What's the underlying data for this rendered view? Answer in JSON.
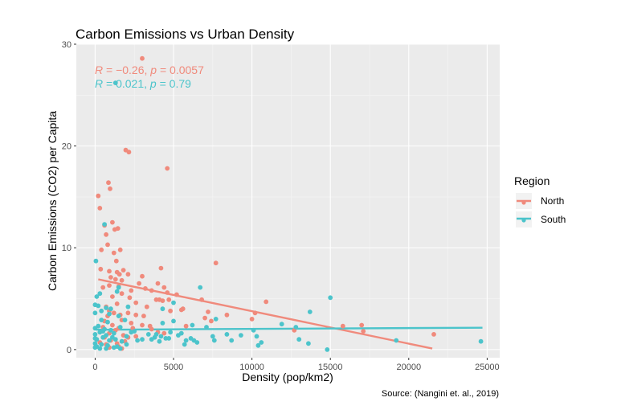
{
  "colors": {
    "north": "#F08A7C",
    "south": "#4CC4CB",
    "panel": "#EBEBEB",
    "grid_major": "#FFFFFF",
    "grid_minor": "#F5F5F5"
  },
  "chart_data": {
    "type": "scatter",
    "title": "Carbon Emissions vs Urban Density",
    "xlabel": "Density (pop/km2)",
    "ylabel": "Carbon Emissions (CO2) per Capita",
    "caption": "Source: (Nangini et. al., 2019)",
    "xlim": [
      -1200,
      25800
    ],
    "ylim": [
      -0.8,
      30
    ],
    "xticks": [
      0,
      5000,
      10000,
      15000,
      20000,
      25000
    ],
    "xtick_labels": [
      "0",
      "5000",
      "10000",
      "15000",
      "20000",
      "25000"
    ],
    "yticks": [
      0,
      10,
      20,
      30
    ],
    "ytick_labels": [
      "0",
      "10",
      "20",
      "30"
    ],
    "grid": true,
    "legend": {
      "title": "Region",
      "position": "right"
    },
    "annotations": {
      "north": {
        "r_label": "R",
        "r_value": " = −0.26, ",
        "p_label": "p",
        "p_value": " = 0.0057"
      },
      "south": {
        "r_label": "R",
        "r_value": " = 0.021, ",
        "p_label": "p",
        "p_value": " = 0.79"
      }
    },
    "series": [
      {
        "name": "North",
        "color": "#F08A7C",
        "trend": {
          "x": [
            200,
            21500
          ],
          "y": [
            6.9,
            0.1
          ]
        },
        "points": [
          [
            3000,
            28.6
          ],
          [
            1950,
            19.6
          ],
          [
            2150,
            19.4
          ],
          [
            4600,
            17.8
          ],
          [
            200,
            15.1
          ],
          [
            850,
            16.4
          ],
          [
            950,
            15.8
          ],
          [
            300,
            13.9
          ],
          [
            600,
            12.2
          ],
          [
            1100,
            12.5
          ],
          [
            1250,
            11.8
          ],
          [
            1450,
            11.9
          ],
          [
            700,
            11.3
          ],
          [
            400,
            9.8
          ],
          [
            800,
            10.3
          ],
          [
            1600,
            9.8
          ],
          [
            1200,
            9.5
          ],
          [
            1350,
            8.7
          ],
          [
            1800,
            7.8
          ],
          [
            7700,
            8.5
          ],
          [
            4200,
            8.0
          ],
          [
            350,
            7.9
          ],
          [
            900,
            7.7
          ],
          [
            1400,
            7.6
          ],
          [
            1550,
            7.4
          ],
          [
            2100,
            7.4
          ],
          [
            3000,
            7.2
          ],
          [
            2800,
            6.5
          ],
          [
            1000,
            7.1
          ],
          [
            1300,
            6.9
          ],
          [
            1700,
            6.8
          ],
          [
            4000,
            6.5
          ],
          [
            4400,
            6.1
          ],
          [
            500,
            6.1
          ],
          [
            900,
            6.3
          ],
          [
            1500,
            6.2
          ],
          [
            2300,
            5.8
          ],
          [
            3200,
            6.0
          ],
          [
            3600,
            5.8
          ],
          [
            4600,
            5.6
          ],
          [
            5200,
            5.4
          ],
          [
            1700,
            5.5
          ],
          [
            2200,
            5.1
          ],
          [
            1100,
            5.2
          ],
          [
            3900,
            4.9
          ],
          [
            4300,
            4.8
          ],
          [
            4700,
            4.9
          ],
          [
            10900,
            4.7
          ],
          [
            6800,
            4.9
          ],
          [
            2600,
            4.6
          ],
          [
            3300,
            4.2
          ],
          [
            5600,
            4.0
          ],
          [
            5500,
            3.9
          ],
          [
            7200,
            3.7
          ],
          [
            700,
            4.2
          ],
          [
            1400,
            4.5
          ],
          [
            900,
            3.8
          ],
          [
            2100,
            3.6
          ],
          [
            1600,
            3.4
          ],
          [
            800,
            3.3
          ],
          [
            1200,
            3.6
          ],
          [
            2600,
            3.4
          ],
          [
            3100,
            3.3
          ],
          [
            7400,
            2.8
          ],
          [
            8400,
            3.4
          ],
          [
            7000,
            3.1
          ],
          [
            10000,
            3.0
          ],
          [
            600,
            2.8
          ],
          [
            1700,
            2.9
          ],
          [
            2300,
            2.6
          ],
          [
            3000,
            2.4
          ],
          [
            3500,
            2.3
          ],
          [
            500,
            2.2
          ],
          [
            1100,
            2.4
          ],
          [
            1500,
            2.1
          ],
          [
            2400,
            2.1
          ],
          [
            3600,
            2.0
          ],
          [
            4000,
            1.7
          ],
          [
            4400,
            1.6
          ],
          [
            5800,
            2.3
          ],
          [
            12700,
            1.9
          ],
          [
            15800,
            2.3
          ],
          [
            17000,
            2.4
          ],
          [
            17100,
            1.8
          ],
          [
            21600,
            1.5
          ],
          [
            900,
            1.6
          ],
          [
            1300,
            1.9
          ],
          [
            1800,
            1.4
          ],
          [
            2100,
            1.2
          ],
          [
            2600,
            1.3
          ],
          [
            600,
            1.2
          ],
          [
            1000,
            0.9
          ],
          [
            1400,
            0.6
          ],
          [
            1900,
            0.8
          ],
          [
            300,
            0.7
          ],
          [
            700,
            0.5
          ],
          [
            900,
            0.2
          ],
          [
            1500,
            0.3
          ],
          [
            1700,
            0.1
          ],
          [
            10200,
            3.6
          ],
          [
            4800,
            3.8
          ],
          [
            4100,
            4.9
          ]
        ]
      },
      {
        "name": "South",
        "color": "#4CC4CB",
        "trend": {
          "x": [
            50,
            24700
          ],
          "y": [
            1.95,
            2.15
          ]
        },
        "points": [
          [
            1300,
            26.2
          ],
          [
            600,
            12.3
          ],
          [
            50,
            8.7
          ],
          [
            1500,
            6.1
          ],
          [
            6700,
            6.1
          ],
          [
            100,
            5.2
          ],
          [
            300,
            5.5
          ],
          [
            1400,
            5.7
          ],
          [
            15000,
            5.1
          ],
          [
            5000,
            4.6
          ],
          [
            0,
            4.4
          ],
          [
            200,
            4.3
          ],
          [
            700,
            4.1
          ],
          [
            1000,
            4.0
          ],
          [
            2100,
            4.2
          ],
          [
            4300,
            4.0
          ],
          [
            13700,
            3.7
          ],
          [
            0,
            3.6
          ],
          [
            400,
            3.8
          ],
          [
            900,
            3.5
          ],
          [
            1500,
            3.3
          ],
          [
            7700,
            3.0
          ],
          [
            400,
            2.9
          ],
          [
            800,
            2.7
          ],
          [
            1900,
            2.9
          ],
          [
            4300,
            2.6
          ],
          [
            5000,
            2.8
          ],
          [
            6200,
            2.4
          ],
          [
            7100,
            2.2
          ],
          [
            11900,
            2.5
          ],
          [
            12800,
            2.2
          ],
          [
            0,
            2.1
          ],
          [
            200,
            2.3
          ],
          [
            600,
            2.0
          ],
          [
            1000,
            1.9
          ],
          [
            1600,
            2.2
          ],
          [
            2300,
            1.7
          ],
          [
            3900,
            1.5
          ],
          [
            4800,
            1.7
          ],
          [
            5500,
            1.6
          ],
          [
            8400,
            1.5
          ],
          [
            0,
            1.5
          ],
          [
            300,
            1.7
          ],
          [
            700,
            1.4
          ],
          [
            1200,
            1.6
          ],
          [
            2000,
            1.3
          ],
          [
            3400,
            1.5
          ],
          [
            3800,
            1.2
          ],
          [
            4200,
            1.3
          ],
          [
            4700,
            1.1
          ],
          [
            5300,
            1.4
          ],
          [
            6100,
            1.1
          ],
          [
            7500,
            1.3
          ],
          [
            10300,
            1.3
          ],
          [
            13000,
            1.0
          ],
          [
            100,
            1.0
          ],
          [
            500,
            1.2
          ],
          [
            900,
            0.9
          ],
          [
            1300,
            1.0
          ],
          [
            1700,
            0.8
          ],
          [
            2700,
            0.9
          ],
          [
            3600,
            1.0
          ],
          [
            4500,
            1.1
          ],
          [
            5800,
            0.9
          ],
          [
            6500,
            0.7
          ],
          [
            7600,
            0.9
          ],
          [
            8700,
            0.9
          ],
          [
            10600,
            0.7
          ],
          [
            13600,
            0.6
          ],
          [
            19200,
            0.9
          ],
          [
            24600,
            0.8
          ],
          [
            0,
            0.6
          ],
          [
            400,
            0.5
          ],
          [
            800,
            0.4
          ],
          [
            1400,
            0.3
          ],
          [
            2000,
            0.5
          ],
          [
            0,
            0.2
          ],
          [
            300,
            0.1
          ],
          [
            700,
            0.1
          ],
          [
            1200,
            0.2
          ],
          [
            1600,
            0.1
          ],
          [
            14800,
            0.0
          ],
          [
            10400,
            0.4
          ],
          [
            5700,
            0.5
          ],
          [
            0,
            1.1
          ],
          [
            100,
            0.3
          ],
          [
            500,
            1.8
          ],
          [
            1100,
            1.2
          ],
          [
            2500,
            1.8
          ],
          [
            3000,
            1.0
          ],
          [
            4100,
            0.8
          ],
          [
            6300,
            0.9
          ],
          [
            9300,
            1.4
          ],
          [
            10100,
            1.9
          ]
        ]
      }
    ]
  }
}
